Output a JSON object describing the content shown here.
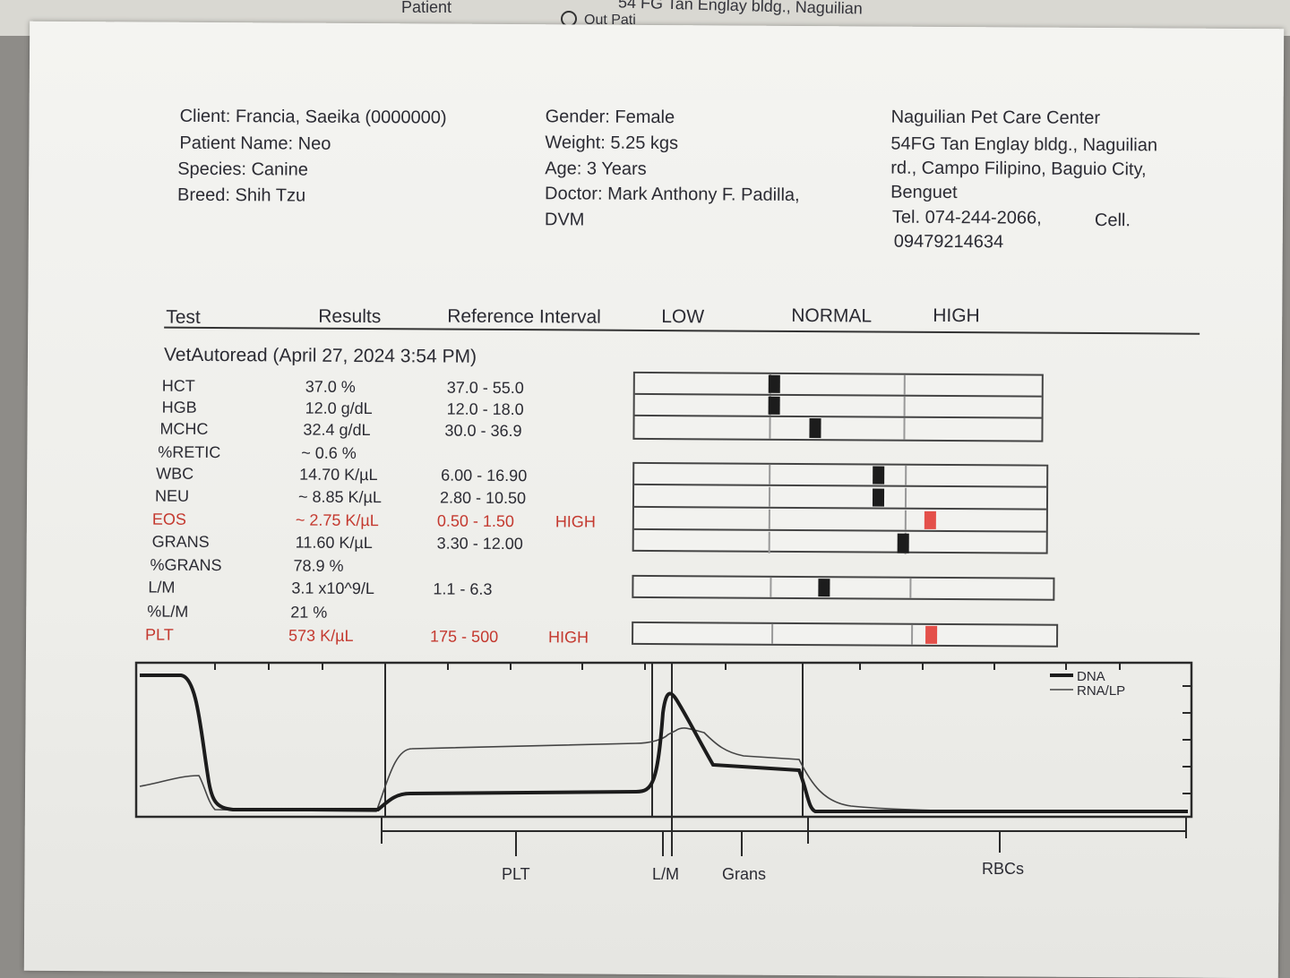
{
  "background": {
    "patient_label": "Patient",
    "address_fragment": "54 FG Tan Englay bldg., Naguilian",
    "outpatient_fragment": "Out Pati"
  },
  "client_info": {
    "client": "Client: Francia, Saeika (0000000)",
    "patient_name": "Patient Name: Neo",
    "species": "Species: Canine",
    "breed": "Breed: Shih Tzu"
  },
  "patient_info": {
    "gender": "Gender: Female",
    "weight": "Weight: 5.25 kgs",
    "age": "Age: 3 Years",
    "doctor_line1": "Doctor: Mark Anthony F. Padilla,",
    "doctor_line2": "DVM"
  },
  "clinic": {
    "name": "Naguilian Pet Care Center",
    "address_line1": "54FG Tan Englay bldg., Naguilian",
    "address_line2": "rd., Campo Filipino, Baguio City,",
    "address_line3": "Benguet",
    "tel": "Tel. 074-244-2066,",
    "cell_label": "Cell.",
    "cell": "09479214634"
  },
  "table_headers": {
    "test": "Test",
    "results": "Results",
    "reference": "Reference Interval",
    "low": "LOW",
    "normal": "NORMAL",
    "high": "HIGH"
  },
  "run_title": "VetAutoread (April 27, 2024 3:54 PM)",
  "rows": [
    {
      "test": "HCT",
      "result": "37.0 %",
      "ref": "37.0 - 55.0",
      "flag": "",
      "abnormal": false,
      "level": 0.0
    },
    {
      "test": "HGB",
      "result": "12.0 g/dL",
      "ref": "12.0 - 18.0",
      "flag": "",
      "abnormal": false,
      "level": 0.0
    },
    {
      "test": "MCHC",
      "result": "32.4 g/dL",
      "ref": "30.0 - 36.9",
      "flag": "",
      "abnormal": false,
      "level": 0.33
    },
    {
      "test": "%RETIC",
      "result": "~ 0.6 %",
      "ref": "",
      "flag": "",
      "abnormal": false,
      "level": null
    },
    {
      "test": "WBC",
      "result": "14.70 K/µL",
      "ref": "6.00 - 16.90",
      "flag": "",
      "abnormal": false,
      "level": 0.8
    },
    {
      "test": "NEU",
      "result": "~ 8.85 K/µL",
      "ref": "2.80 - 10.50",
      "flag": "",
      "abnormal": false,
      "level": 0.8
    },
    {
      "test": "EOS",
      "result": "~ 2.75 K/µL",
      "ref": "0.50 - 1.50",
      "flag": "HIGH",
      "abnormal": true,
      "level": 1.15
    },
    {
      "test": "GRANS",
      "result": "11.60 K/µL",
      "ref": "3.30 - 12.00",
      "flag": "",
      "abnormal": false,
      "level": 0.95
    },
    {
      "test": "%GRANS",
      "result": "78.9 %",
      "ref": "",
      "flag": "",
      "abnormal": false,
      "level": null
    },
    {
      "test": "L/M",
      "result": "3.1 x10^9/L",
      "ref": "1.1 - 6.3",
      "flag": "",
      "abnormal": false,
      "level": 0.38
    },
    {
      "test": "%L/M",
      "result": "21 %",
      "ref": "",
      "flag": "",
      "abnormal": false,
      "level": null
    },
    {
      "test": "PLT",
      "result": "573 K/µL",
      "ref": "175 - 500",
      "flag": "HIGH",
      "abnormal": true,
      "level": 1.15
    }
  ],
  "histogram": {
    "legend": [
      "DNA",
      "RNA/LP"
    ],
    "regions": [
      "PLT",
      "L/M",
      "Grans",
      "RBCs"
    ]
  },
  "colors": {
    "abnormal": "#c4392f",
    "high_marker": "#e4504a",
    "normal_marker": "#1c1c1c"
  }
}
